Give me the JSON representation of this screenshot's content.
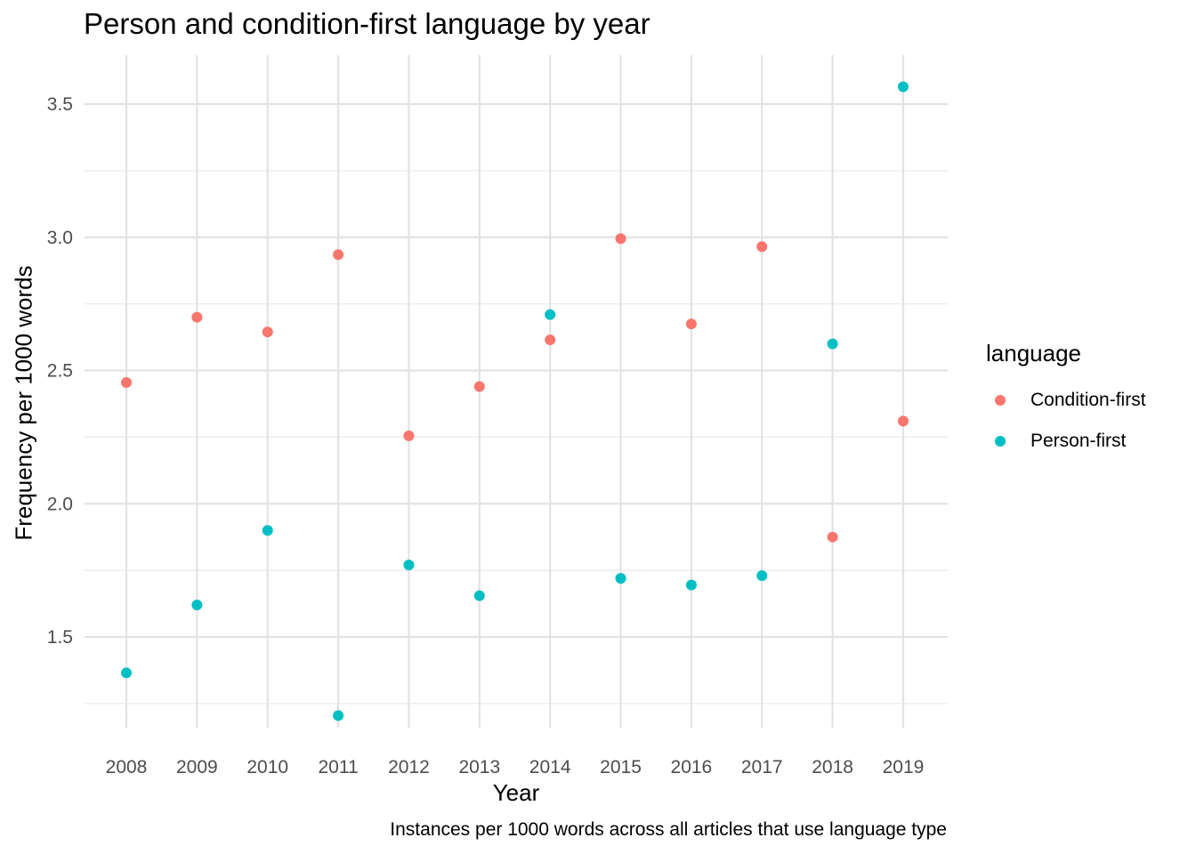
{
  "chart_data": {
    "type": "scatter",
    "title": "Person and condition-first language by year",
    "xlabel": "Year",
    "ylabel": "Frequency per 1000 words",
    "caption": "Instances per 1000 words across all articles that use language type",
    "categories": [
      "2008",
      "2009",
      "2010",
      "2011",
      "2012",
      "2013",
      "2014",
      "2015",
      "2016",
      "2017",
      "2018",
      "2019"
    ],
    "y_ticks": [
      "1.5",
      "2.0",
      "2.5",
      "3.0",
      "3.5"
    ],
    "ylim": [
      1.13,
      3.7
    ],
    "grid": true,
    "legend": {
      "title": "language",
      "position": "right"
    },
    "series": [
      {
        "name": "Condition-first",
        "color": "#F8766D",
        "values": [
          2.455,
          2.7,
          2.645,
          2.935,
          2.255,
          2.44,
          2.615,
          2.995,
          2.675,
          2.965,
          1.875,
          2.31
        ]
      },
      {
        "name": "Person-first",
        "color": "#00BFC4",
        "values": [
          1.365,
          1.62,
          1.9,
          1.205,
          1.77,
          1.655,
          2.71,
          1.72,
          1.695,
          1.73,
          2.6,
          3.565
        ]
      }
    ]
  }
}
